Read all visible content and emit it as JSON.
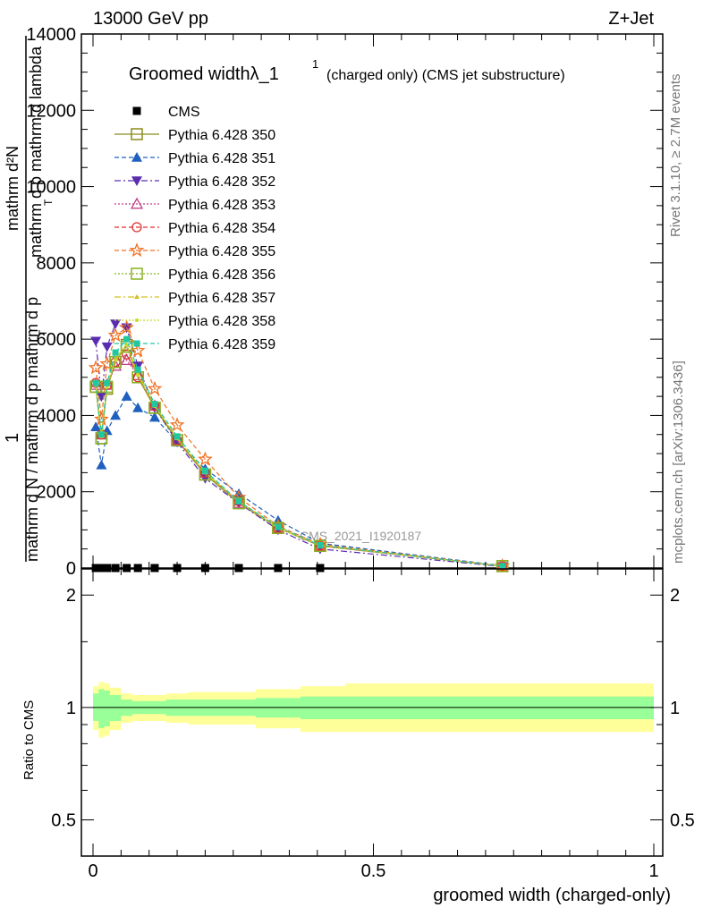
{
  "header": {
    "left": "13000 GeV pp",
    "right": "Z+Jet"
  },
  "side_texts": {
    "rivet": "Rivet 3.1.10, ≥ 2.7M events",
    "mcplots": "mcplots.cern.ch [arXiv:1306.3436]"
  },
  "chart_data": [
    {
      "type": "line",
      "title_main": "Groomed widthλ_1",
      "title_sup": "1",
      "title_rest": "(charged only) (CMS jet substructure)",
      "watermark": "CMS_2021_I1920187",
      "xlim": [
        0,
        1
      ],
      "ylim": [
        0,
        14000
      ],
      "x_ticks": [
        0,
        0.5,
        1
      ],
      "x_tick_labels": [
        "0",
        "0.5",
        "1"
      ],
      "y_ticks": [
        0,
        2000,
        4000,
        6000,
        8000,
        10000,
        12000,
        14000
      ],
      "y_tick_labels": [
        "0",
        "2000",
        "4000",
        "6000",
        "8000",
        "10000",
        "12000",
        "14000"
      ],
      "ylabel_parts": [
        "1",
        "mathrm d N / mathrm d p mathrm d p",
        "mathrm d²N",
        "mathrm d p mathrm d lambda",
        "T",
        "T"
      ],
      "x": [
        0.005,
        0.015,
        0.025,
        0.04,
        0.06,
        0.08,
        0.11,
        0.15,
        0.2,
        0.26,
        0.33,
        0.405,
        0.73
      ],
      "series": [
        {
          "name": "CMS",
          "color": "#000000",
          "marker": "square-filled",
          "dash": "none",
          "values": [
            0,
            0,
            0,
            0,
            0,
            0,
            0,
            0,
            0,
            0,
            0,
            0,
            0
          ]
        },
        {
          "name": "Pythia 6.428 350",
          "color": "#8b8b1a",
          "marker": "square-open",
          "dash": "solid",
          "values": [
            4750,
            3400,
            4700,
            5400,
            5850,
            5000,
            4200,
            3350,
            2450,
            1700,
            1050,
            580,
            50
          ]
        },
        {
          "name": "Pythia 6.428 351",
          "color": "#1f5fbf",
          "marker": "triangle-up-filled",
          "dash": "dash",
          "values": [
            3700,
            2700,
            3600,
            4000,
            4500,
            4200,
            3950,
            3300,
            2600,
            1950,
            1250,
            650,
            60
          ]
        },
        {
          "name": "Pythia 6.428 352",
          "color": "#5a2db0",
          "marker": "triangle-down-filled",
          "dash": "dashdot",
          "values": [
            5950,
            4500,
            5800,
            6400,
            6300,
            5300,
            4200,
            3300,
            2350,
            1700,
            1000,
            500,
            40
          ]
        },
        {
          "name": "Pythia 6.428 353",
          "color": "#c0408a",
          "marker": "triangle-up-open",
          "dash": "dot",
          "values": [
            4800,
            3500,
            4800,
            5300,
            5450,
            5050,
            4250,
            3350,
            2500,
            1700,
            1050,
            580,
            50
          ]
        },
        {
          "name": "Pythia 6.428 354",
          "color": "#e03030",
          "marker": "circle-open",
          "dash": "dash",
          "values": [
            4850,
            3500,
            4800,
            5400,
            5600,
            5000,
            4250,
            3350,
            2500,
            1750,
            1050,
            590,
            50
          ]
        },
        {
          "name": "Pythia 6.428 355",
          "color": "#f07020",
          "marker": "star-open",
          "dash": "dash",
          "values": [
            5250,
            3900,
            5350,
            6100,
            6300,
            5700,
            4700,
            3750,
            2850,
            1850,
            1100,
            620,
            55
          ]
        },
        {
          "name": "Pythia 6.428 356",
          "color": "#8ab020",
          "marker": "square-open",
          "dash": "dot",
          "values": [
            4750,
            3400,
            4750,
            5400,
            5800,
            5000,
            4200,
            3350,
            2450,
            1700,
            1050,
            580,
            50
          ]
        },
        {
          "name": "Pythia 6.428 357",
          "color": "#d4c020",
          "marker": "tri-small",
          "dash": "dashdot",
          "values": [
            4800,
            3450,
            4800,
            5500,
            5850,
            5100,
            4250,
            3400,
            2500,
            1750,
            1050,
            590,
            50
          ]
        },
        {
          "name": "Pythia 6.428 358",
          "color": "#c8dc28",
          "marker": "dot-small",
          "dash": "dot",
          "values": [
            4800,
            3450,
            4750,
            5450,
            5850,
            5050,
            4250,
            3400,
            2500,
            1750,
            1050,
            590,
            50
          ]
        },
        {
          "name": "Pythia 6.428 359",
          "color": "#20c8a0",
          "marker": "square-small-filled",
          "dash": "dash",
          "values": [
            4850,
            3500,
            4850,
            5650,
            6000,
            5200,
            4300,
            3450,
            2550,
            1750,
            1080,
            600,
            50
          ]
        }
      ]
    },
    {
      "type": "area",
      "ylabel": "Ratio to CMS",
      "xlabel": "groomed width (charged-only)",
      "xlim": [
        0,
        1
      ],
      "ylim": [
        0.4,
        2.35
      ],
      "y_scale": "log",
      "y_ticks": [
        0.5,
        1,
        2
      ],
      "y_tick_labels": [
        "0.5",
        "1",
        "2"
      ],
      "x_ticks": [
        0,
        0.5,
        1
      ],
      "x_tick_labels": [
        "0",
        "0.5",
        "1"
      ],
      "bins": [
        0,
        0.01,
        0.02,
        0.03,
        0.05,
        0.07,
        0.09,
        0.13,
        0.17,
        0.23,
        0.29,
        0.37,
        0.45,
        1.0
      ],
      "band_inner": [
        [
          0.92,
          1.09
        ],
        [
          0.88,
          1.12
        ],
        [
          0.89,
          1.11
        ],
        [
          0.92,
          1.08
        ],
        [
          0.95,
          1.05
        ],
        [
          0.96,
          1.04
        ],
        [
          0.96,
          1.04
        ],
        [
          0.95,
          1.05
        ],
        [
          0.95,
          1.05
        ],
        [
          0.95,
          1.05
        ],
        [
          0.94,
          1.06
        ],
        [
          0.93,
          1.07
        ],
        [
          0.93,
          1.07
        ]
      ],
      "band_outer": [
        [
          0.87,
          1.14
        ],
        [
          0.83,
          1.17
        ],
        [
          0.84,
          1.16
        ],
        [
          0.87,
          1.13
        ],
        [
          0.91,
          1.09
        ],
        [
          0.92,
          1.08
        ],
        [
          0.92,
          1.08
        ],
        [
          0.91,
          1.09
        ],
        [
          0.9,
          1.1
        ],
        [
          0.9,
          1.1
        ],
        [
          0.88,
          1.12
        ],
        [
          0.86,
          1.14
        ],
        [
          0.86,
          1.16
        ]
      ],
      "colors": {
        "inner": "#99ff99",
        "outer": "#ffff99",
        "line": "#000000"
      }
    }
  ]
}
